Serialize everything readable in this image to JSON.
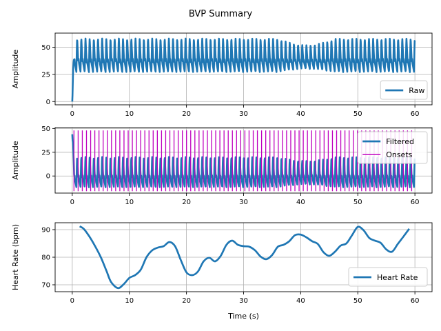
{
  "chart_data": {
    "title": "BVP Summary",
    "panels": [
      {
        "id": "raw",
        "type": "line",
        "ylabel": "Amplitude",
        "xlim": [
          -3,
          63
        ],
        "ylim": [
          -3,
          63
        ],
        "xticks": [
          0,
          10,
          20,
          30,
          40,
          50,
          60
        ],
        "yticks": [
          0,
          25,
          50
        ],
        "grid": true,
        "legend": {
          "placement": "lower-right",
          "entries": [
            "Raw"
          ]
        },
        "series": [
          {
            "name": "Raw",
            "color": "#1f77b4",
            "signal": {
              "x_start": 0,
              "x_end": 60,
              "beats_per_second": 1.37,
              "trough_level": 27,
              "peak_level": 58,
              "secondary_peak_level": 37,
              "start_value": 0,
              "envelope_dip_range": [
                36,
                46
              ],
              "envelope_dip_peak_level": 52,
              "envelope_dip_trough_level": 30
            }
          }
        ]
      },
      {
        "id": "filtered",
        "type": "line",
        "ylabel": "Amplitude",
        "xlim": [
          -3,
          63
        ],
        "ylim": [
          -18,
          51
        ],
        "xticks": [
          0,
          10,
          20,
          30,
          40,
          50,
          60
        ],
        "yticks": [
          0,
          25,
          50
        ],
        "grid": true,
        "legend": {
          "placement": "upper-right",
          "entries": [
            "Filtered",
            "Onsets"
          ]
        },
        "series": [
          {
            "name": "Filtered",
            "color": "#1f77b4",
            "signal": {
              "x_start": 0,
              "x_end": 60,
              "beats_per_second": 1.37,
              "trough_level": -12,
              "peak_level": 20,
              "secondary_peak_level": 2,
              "start_spike": 44,
              "envelope_dip_range": [
                36,
                46
              ],
              "envelope_dip_peak_level": 16,
              "envelope_dip_trough_level": -9
            }
          },
          {
            "name": "Onsets",
            "color": "#bf00bf",
            "vlines": {
              "x_start": 0.3,
              "x_end": 59.5,
              "spacing": 0.73,
              "ymin": -16,
              "ymax": 48
            }
          }
        ]
      },
      {
        "id": "heart-rate",
        "type": "line",
        "xlabel": "Time (s)",
        "ylabel": "Heart Rate (bpm)",
        "xlim": [
          -3,
          63
        ],
        "ylim": [
          67.5,
          92.5
        ],
        "xticks": [
          0,
          10,
          20,
          30,
          40,
          50,
          60
        ],
        "yticks": [
          70,
          80,
          90
        ],
        "grid": true,
        "legend": {
          "placement": "lower-right",
          "entries": [
            "Heart Rate"
          ]
        },
        "series": [
          {
            "name": "Heart Rate",
            "color": "#1f77b4",
            "x": [
              1.3,
              2,
              3,
              4,
              5,
              6,
              6.8,
              8,
              9,
              10,
              11,
              12,
              13,
              14,
              15,
              16,
              17,
              18,
              19,
              20,
              21,
              22,
              23,
              24,
              25,
              26,
              27,
              28,
              29,
              30,
              31,
              32,
              33,
              34,
              35,
              36,
              37,
              38,
              39,
              40,
              41,
              42,
              43,
              44,
              45,
              46,
              47,
              48,
              49,
              50,
              51,
              52,
              53,
              54,
              55,
              56,
              57,
              58,
              59
            ],
            "y": [
              91.2,
              90.3,
              87.5,
              84,
              80,
              75,
              71,
              68.8,
              70.2,
              72.5,
              73.5,
              75.5,
              80,
              82.5,
              83.5,
              84,
              85.5,
              84,
              79,
              74.5,
              73.5,
              74.8,
              78.5,
              79.8,
              78.5,
              80.5,
              84.5,
              86,
              84.5,
              84,
              83.8,
              82.5,
              80.2,
              79.3,
              80.8,
              83.8,
              84.5,
              85.8,
              88,
              88.2,
              87.2,
              85.8,
              84.8,
              81.8,
              80.5,
              82,
              84.2,
              85,
              88,
              91,
              89.8,
              87,
              86,
              85.2,
              82.8,
              82,
              84.8,
              87.5,
              90.3
            ]
          }
        ]
      }
    ]
  }
}
